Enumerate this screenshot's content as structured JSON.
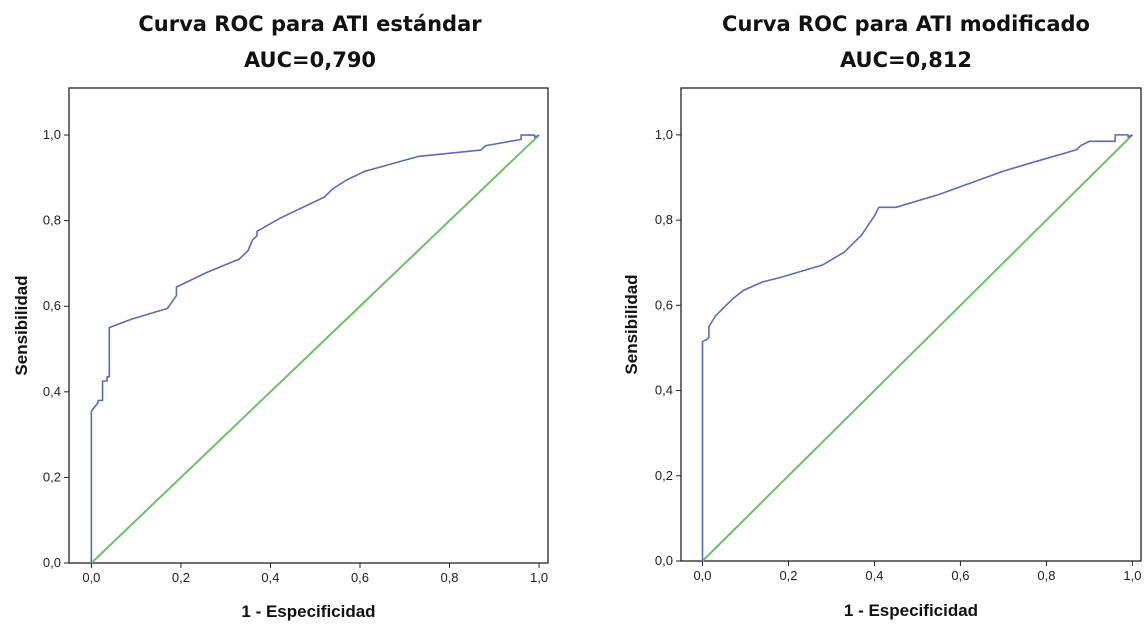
{
  "chart_data": [
    {
      "type": "line",
      "title": [
        "Curva ROC para ATI estándar",
        "AUC=0,790"
      ],
      "xlabel": "1 - Especificidad",
      "ylabel": "Sensibilidad",
      "xlim": [
        -0.05,
        1.02
      ],
      "ylim": [
        0.0,
        1.11
      ],
      "xticks": [
        0.0,
        0.2,
        0.4,
        0.6,
        0.8,
        1.0
      ],
      "xtick_labels": [
        "0,0",
        "0,2",
        "0,4",
        "0,6",
        "0,8",
        "1,0"
      ],
      "yticks": [
        0.0,
        0.2,
        0.4,
        0.6,
        0.8,
        1.0
      ],
      "ytick_labels": [
        "0,0",
        "0,2",
        "0,4",
        "0,6",
        "0,8",
        "1,0"
      ],
      "grid": false,
      "colors": {
        "roc": "#5a6cb4",
        "reference": "#6cc167"
      },
      "series": [
        {
          "x": [
            0.0,
            0.0,
            0.015,
            0.015,
            0.025,
            0.025,
            0.035,
            0.035,
            0.04,
            0.04,
            0.09,
            0.17,
            0.18,
            0.19,
            0.19,
            0.26,
            0.33,
            0.35,
            0.36,
            0.37,
            0.37,
            0.42,
            0.48,
            0.52,
            0.54,
            0.57,
            0.61,
            0.73,
            0.87,
            0.88,
            0.96,
            0.96,
            0.99,
            0.99,
            1.0
          ],
          "y": [
            0.0,
            0.355,
            0.375,
            0.38,
            0.38,
            0.425,
            0.425,
            0.435,
            0.435,
            0.55,
            0.57,
            0.595,
            0.61,
            0.625,
            0.645,
            0.68,
            0.71,
            0.73,
            0.755,
            0.765,
            0.775,
            0.805,
            0.835,
            0.855,
            0.875,
            0.895,
            0.915,
            0.95,
            0.965,
            0.975,
            0.99,
            1.0,
            1.0,
            0.995,
            1.0
          ]
        },
        {
          "x": [
            0.0,
            1.0
          ],
          "y": [
            0.0,
            1.0
          ]
        }
      ]
    },
    {
      "type": "line",
      "title": [
        "Curva ROC para ATI modificado",
        "AUC=0,812"
      ],
      "xlabel": "1 - Especificidad",
      "ylabel": "Sensibilidad",
      "xlim": [
        -0.05,
        1.02
      ],
      "ylim": [
        0.0,
        1.11
      ],
      "xticks": [
        0.0,
        0.2,
        0.4,
        0.6,
        0.8,
        1.0
      ],
      "xtick_labels": [
        "0,0",
        "0,2",
        "0,4",
        "0,6",
        "0,8",
        "1,0"
      ],
      "yticks": [
        0.0,
        0.2,
        0.4,
        0.6,
        0.8,
        1.0
      ],
      "ytick_labels": [
        "0,0",
        "0,2",
        "0,4",
        "0,6",
        "0,8",
        "1,0"
      ],
      "grid": false,
      "colors": {
        "roc": "#5a6cb4",
        "reference": "#6cc167"
      },
      "series": [
        {
          "x": [
            0.0,
            0.0,
            0.01,
            0.015,
            0.015,
            0.03,
            0.05,
            0.07,
            0.095,
            0.14,
            0.18,
            0.23,
            0.28,
            0.33,
            0.35,
            0.36,
            0.37,
            0.4,
            0.41,
            0.45,
            0.55,
            0.7,
            0.75,
            0.87,
            0.88,
            0.9,
            0.96,
            0.96,
            0.99,
            0.99,
            1.0
          ],
          "y": [
            0.0,
            0.515,
            0.52,
            0.525,
            0.55,
            0.575,
            0.595,
            0.615,
            0.635,
            0.655,
            0.665,
            0.68,
            0.695,
            0.725,
            0.745,
            0.755,
            0.765,
            0.81,
            0.83,
            0.83,
            0.86,
            0.915,
            0.93,
            0.965,
            0.975,
            0.985,
            0.985,
            1.0,
            1.0,
            0.995,
            1.0
          ]
        },
        {
          "x": [
            0.0,
            1.0
          ],
          "y": [
            0.0,
            1.0
          ]
        }
      ]
    }
  ]
}
